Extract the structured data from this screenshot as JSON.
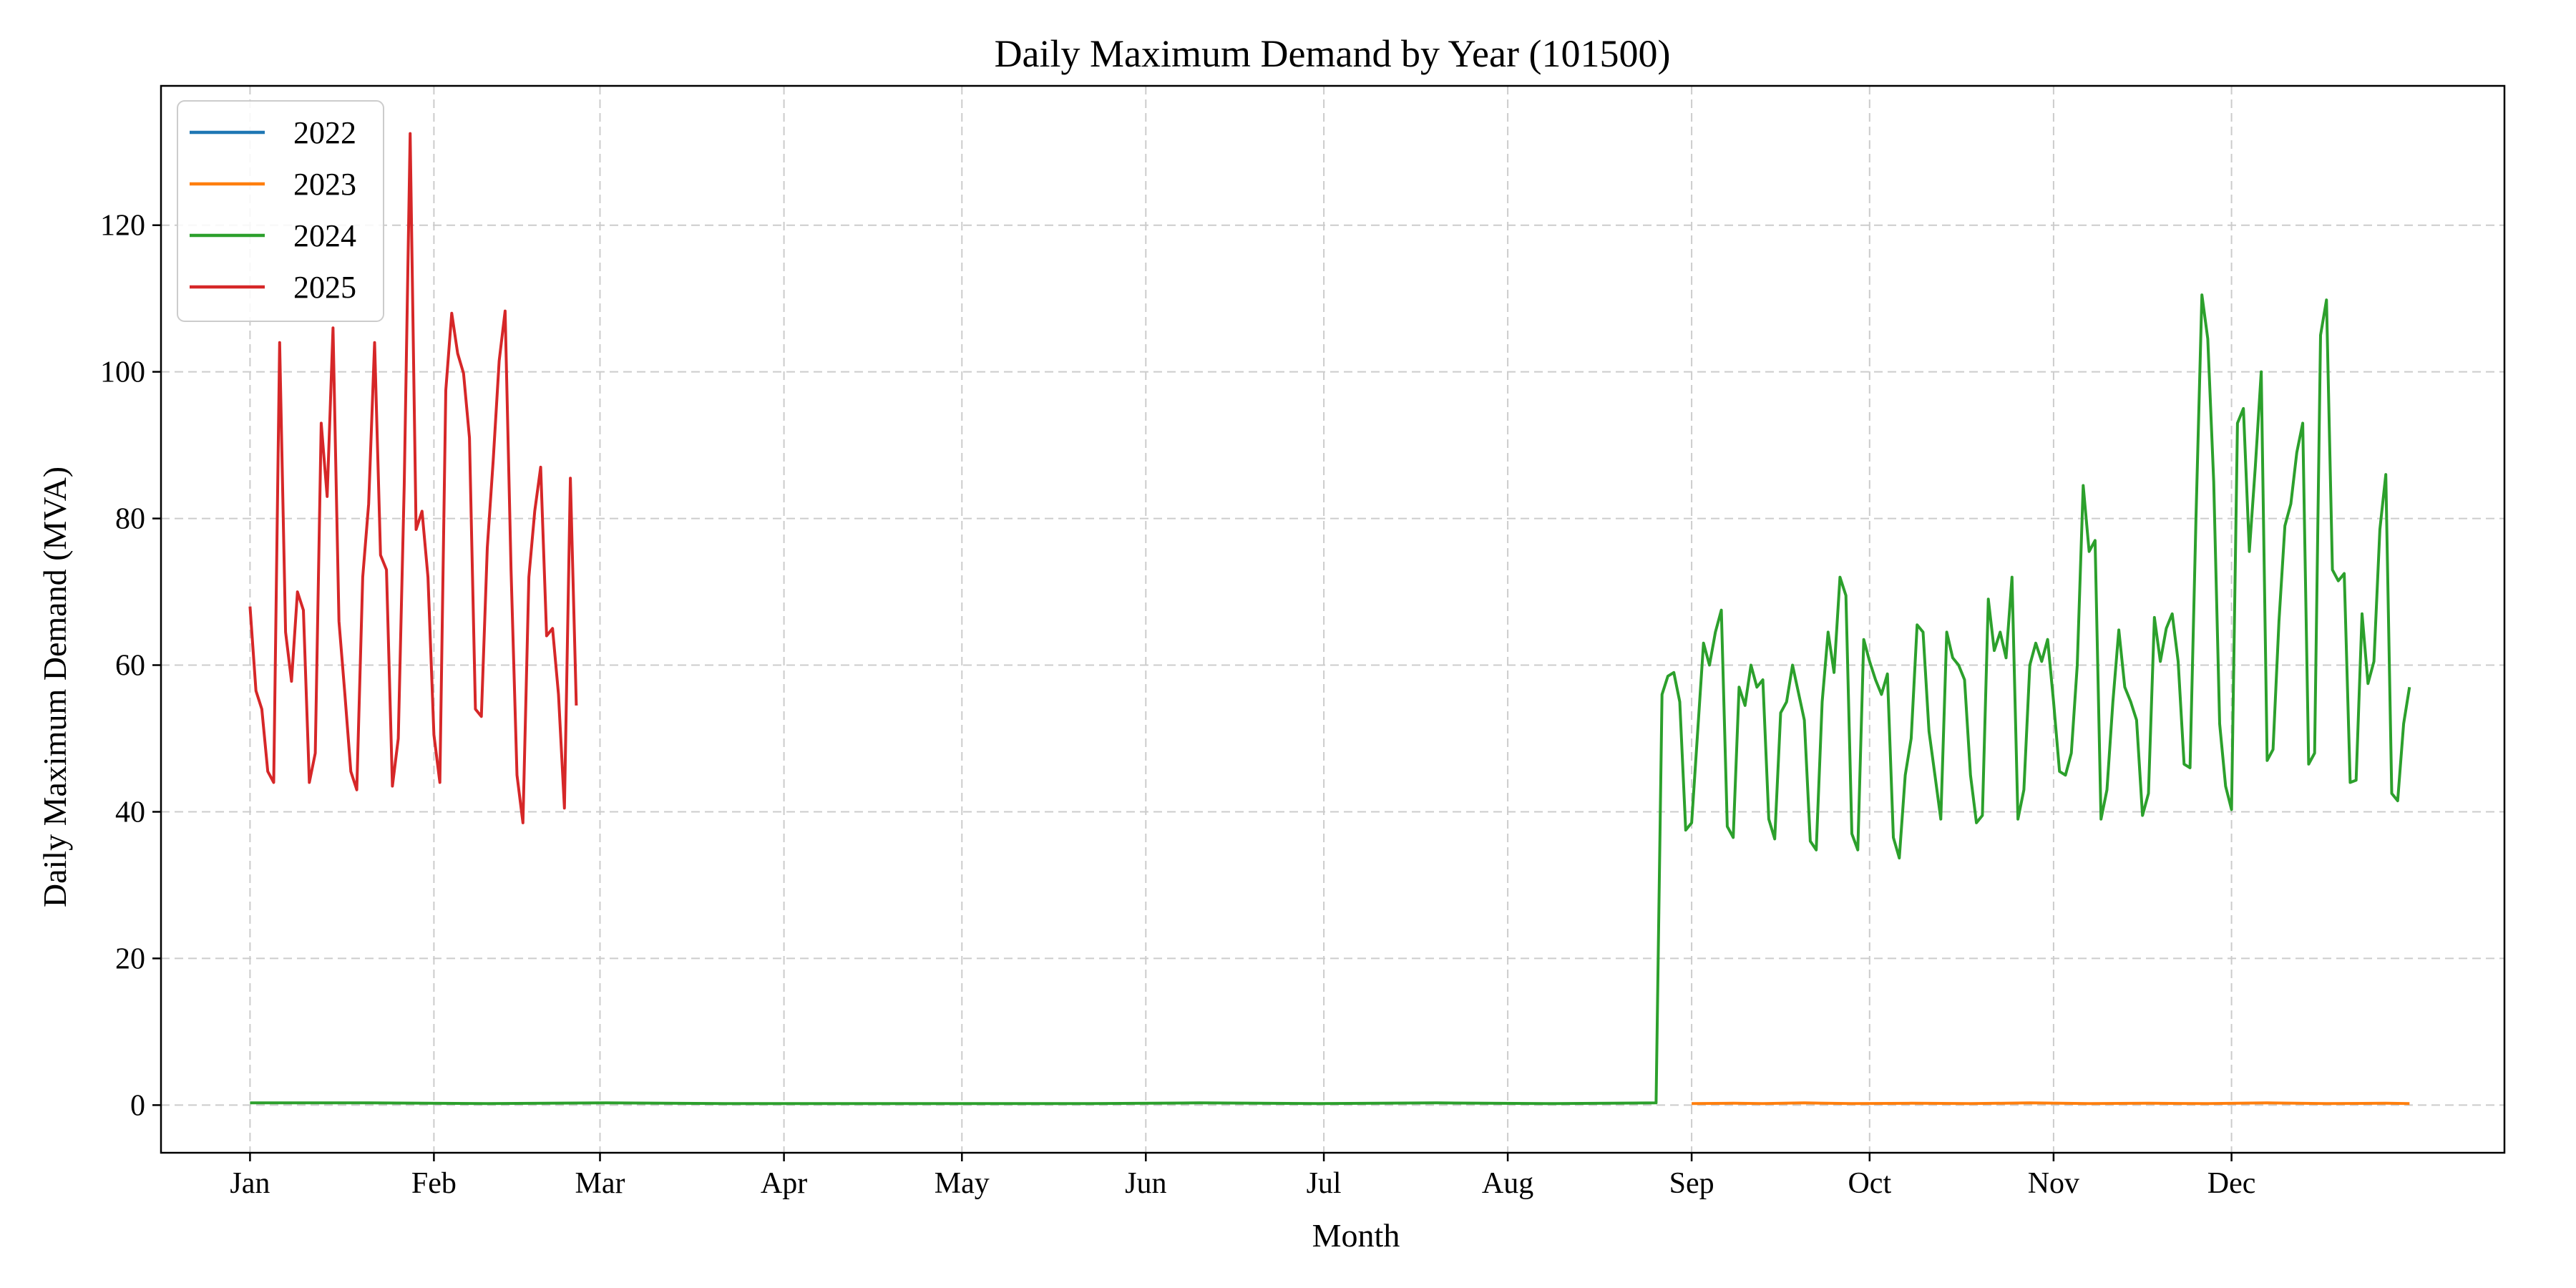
{
  "chart_data": {
    "type": "line",
    "title": "Daily Maximum Demand by Year (101500)",
    "xlabel": "Month",
    "ylabel": "Daily Maximum Demand (MVA)",
    "xlim": [
      -15,
      380
    ],
    "ylim": [
      -6.5,
      139
    ],
    "grid": true,
    "legend_position": "top-left",
    "x_ticks": [
      {
        "day": 0,
        "label": "Jan"
      },
      {
        "day": 31,
        "label": "Feb"
      },
      {
        "day": 59,
        "label": "Mar"
      },
      {
        "day": 90,
        "label": "Apr"
      },
      {
        "day": 120,
        "label": "May"
      },
      {
        "day": 151,
        "label": "Jun"
      },
      {
        "day": 181,
        "label": "Jul"
      },
      {
        "day": 212,
        "label": "Aug"
      },
      {
        "day": 243,
        "label": "Sep"
      },
      {
        "day": 273,
        "label": "Oct"
      },
      {
        "day": 304,
        "label": "Nov"
      },
      {
        "day": 334,
        "label": "Dec"
      }
    ],
    "y_ticks": [
      0,
      20,
      40,
      60,
      80,
      100,
      120
    ],
    "series": [
      {
        "name": "2022",
        "color": "#1f77b4",
        "points": []
      },
      {
        "name": "2023",
        "color": "#ff7f0e",
        "points": [
          [
            243,
            0.2
          ],
          [
            250,
            0.25
          ],
          [
            255,
            0.2
          ],
          [
            262,
            0.3
          ],
          [
            270,
            0.2
          ],
          [
            280,
            0.25
          ],
          [
            290,
            0.2
          ],
          [
            300,
            0.3
          ],
          [
            310,
            0.2
          ],
          [
            320,
            0.25
          ],
          [
            330,
            0.2
          ],
          [
            340,
            0.3
          ],
          [
            350,
            0.2
          ],
          [
            360,
            0.25
          ],
          [
            364,
            0.2
          ]
        ]
      },
      {
        "name": "2024",
        "color": "#2ca02c",
        "points": [
          [
            0,
            0.3
          ],
          [
            20,
            0.3
          ],
          [
            40,
            0.2
          ],
          [
            60,
            0.3
          ],
          [
            80,
            0.2
          ],
          [
            100,
            0.2
          ],
          [
            120,
            0.2
          ],
          [
            140,
            0.2
          ],
          [
            160,
            0.3
          ],
          [
            180,
            0.2
          ],
          [
            200,
            0.3
          ],
          [
            220,
            0.2
          ],
          [
            237,
            0.3
          ],
          [
            238,
            56
          ],
          [
            239,
            58.5
          ],
          [
            240,
            59
          ],
          [
            241,
            55
          ],
          [
            242,
            37.5
          ],
          [
            243,
            38.5
          ],
          [
            245,
            63
          ],
          [
            246,
            60
          ],
          [
            247,
            64.5
          ],
          [
            248,
            67.5
          ],
          [
            249,
            38
          ],
          [
            250,
            36.5
          ],
          [
            251,
            57
          ],
          [
            252,
            54.5
          ],
          [
            253,
            60
          ],
          [
            254,
            57
          ],
          [
            255,
            58
          ],
          [
            256,
            39
          ],
          [
            257,
            36.3
          ],
          [
            258,
            53.5
          ],
          [
            259,
            55
          ],
          [
            260,
            60
          ],
          [
            262,
            52.5
          ],
          [
            263,
            36
          ],
          [
            264,
            34.8
          ],
          [
            265,
            55
          ],
          [
            266,
            64.5
          ],
          [
            267,
            59
          ],
          [
            268,
            72
          ],
          [
            269,
            69.5
          ],
          [
            270,
            37
          ],
          [
            271,
            34.8
          ],
          [
            272,
            63.5
          ],
          [
            273,
            60.5
          ],
          [
            274,
            58
          ],
          [
            275,
            56
          ],
          [
            276,
            58.8
          ],
          [
            277,
            36.5
          ],
          [
            278,
            33.7
          ],
          [
            279,
            45
          ],
          [
            280,
            50
          ],
          [
            281,
            65.5
          ],
          [
            282,
            64.5
          ],
          [
            283,
            51
          ],
          [
            284,
            45
          ],
          [
            285,
            39
          ],
          [
            286,
            64.5
          ],
          [
            287,
            61
          ],
          [
            288,
            60
          ],
          [
            289,
            58
          ],
          [
            290,
            45
          ],
          [
            291,
            38.5
          ],
          [
            292,
            39.5
          ],
          [
            293,
            69
          ],
          [
            294,
            62
          ],
          [
            295,
            64.5
          ],
          [
            296,
            61
          ],
          [
            297,
            72
          ],
          [
            298,
            39
          ],
          [
            299,
            43
          ],
          [
            300,
            60
          ],
          [
            301,
            63
          ],
          [
            302,
            60.5
          ],
          [
            303,
            63.5
          ],
          [
            304,
            55
          ],
          [
            305,
            45.5
          ],
          [
            306,
            45
          ],
          [
            307,
            48
          ],
          [
            308,
            60
          ],
          [
            309,
            84.5
          ],
          [
            310,
            75.5
          ],
          [
            311,
            77
          ],
          [
            312,
            39
          ],
          [
            313,
            43
          ],
          [
            314,
            55
          ],
          [
            315,
            64.8
          ],
          [
            316,
            57
          ],
          [
            317,
            55
          ],
          [
            318,
            52.5
          ],
          [
            319,
            39.5
          ],
          [
            320,
            42.5
          ],
          [
            321,
            66.5
          ],
          [
            322,
            60.5
          ],
          [
            323,
            65
          ],
          [
            324,
            67
          ],
          [
            325,
            60.5
          ],
          [
            326,
            46.5
          ],
          [
            327,
            46
          ],
          [
            328,
            80
          ],
          [
            329,
            110.5
          ],
          [
            330,
            104.5
          ],
          [
            331,
            85
          ],
          [
            332,
            52
          ],
          [
            333,
            43.5
          ],
          [
            334,
            40.3
          ],
          [
            335,
            93
          ],
          [
            336,
            95
          ],
          [
            337,
            75.5
          ],
          [
            338,
            87
          ],
          [
            339,
            100
          ],
          [
            340,
            47
          ],
          [
            341,
            48.5
          ],
          [
            342,
            66
          ],
          [
            343,
            79
          ],
          [
            344,
            82
          ],
          [
            345,
            89
          ],
          [
            346,
            93
          ],
          [
            347,
            46.5
          ],
          [
            348,
            48
          ],
          [
            349,
            105
          ],
          [
            350,
            109.8
          ],
          [
            351,
            73
          ],
          [
            352,
            71.5
          ],
          [
            353,
            72.5
          ],
          [
            354,
            44
          ],
          [
            355,
            44.3
          ],
          [
            356,
            67
          ],
          [
            357,
            57.5
          ],
          [
            358,
            60.5
          ],
          [
            359,
            78.5
          ],
          [
            360,
            86
          ],
          [
            361,
            42.5
          ],
          [
            362,
            41.5
          ],
          [
            363,
            52
          ],
          [
            364,
            57
          ]
        ]
      },
      {
        "name": "2025",
        "color": "#d62728",
        "points": [
          [
            0,
            68
          ],
          [
            1,
            56.5
          ],
          [
            2,
            54
          ],
          [
            3,
            45.5
          ],
          [
            4,
            44
          ],
          [
            5,
            104
          ],
          [
            6,
            64.5
          ],
          [
            7,
            57.8
          ],
          [
            8,
            70
          ],
          [
            9,
            67.5
          ],
          [
            10,
            44
          ],
          [
            11,
            48
          ],
          [
            12,
            93
          ],
          [
            13,
            83
          ],
          [
            14,
            106
          ],
          [
            15,
            66
          ],
          [
            16,
            56
          ],
          [
            17,
            45.5
          ],
          [
            18,
            43
          ],
          [
            19,
            72
          ],
          [
            20,
            82
          ],
          [
            21,
            104
          ],
          [
            22,
            75
          ],
          [
            23,
            73
          ],
          [
            24,
            43.5
          ],
          [
            25,
            50
          ],
          [
            26,
            84.5
          ],
          [
            27,
            132.5
          ],
          [
            28,
            78.5
          ],
          [
            29,
            81
          ],
          [
            30,
            72
          ],
          [
            31,
            50.5
          ],
          [
            32,
            44
          ],
          [
            33,
            97.5
          ],
          [
            34,
            108
          ],
          [
            35,
            102.5
          ],
          [
            36,
            99.8
          ],
          [
            37,
            91
          ],
          [
            38,
            54
          ],
          [
            39,
            53
          ],
          [
            40,
            76
          ],
          [
            41,
            88
          ],
          [
            42,
            101.5
          ],
          [
            43,
            108.3
          ],
          [
            44,
            73
          ],
          [
            45,
            45
          ],
          [
            46,
            38.5
          ],
          [
            47,
            72
          ],
          [
            48,
            81
          ],
          [
            49,
            87
          ],
          [
            50,
            64
          ],
          [
            51,
            65
          ],
          [
            52,
            56
          ],
          [
            53,
            40.5
          ],
          [
            54,
            85.5
          ],
          [
            55,
            54.5
          ]
        ]
      }
    ]
  }
}
